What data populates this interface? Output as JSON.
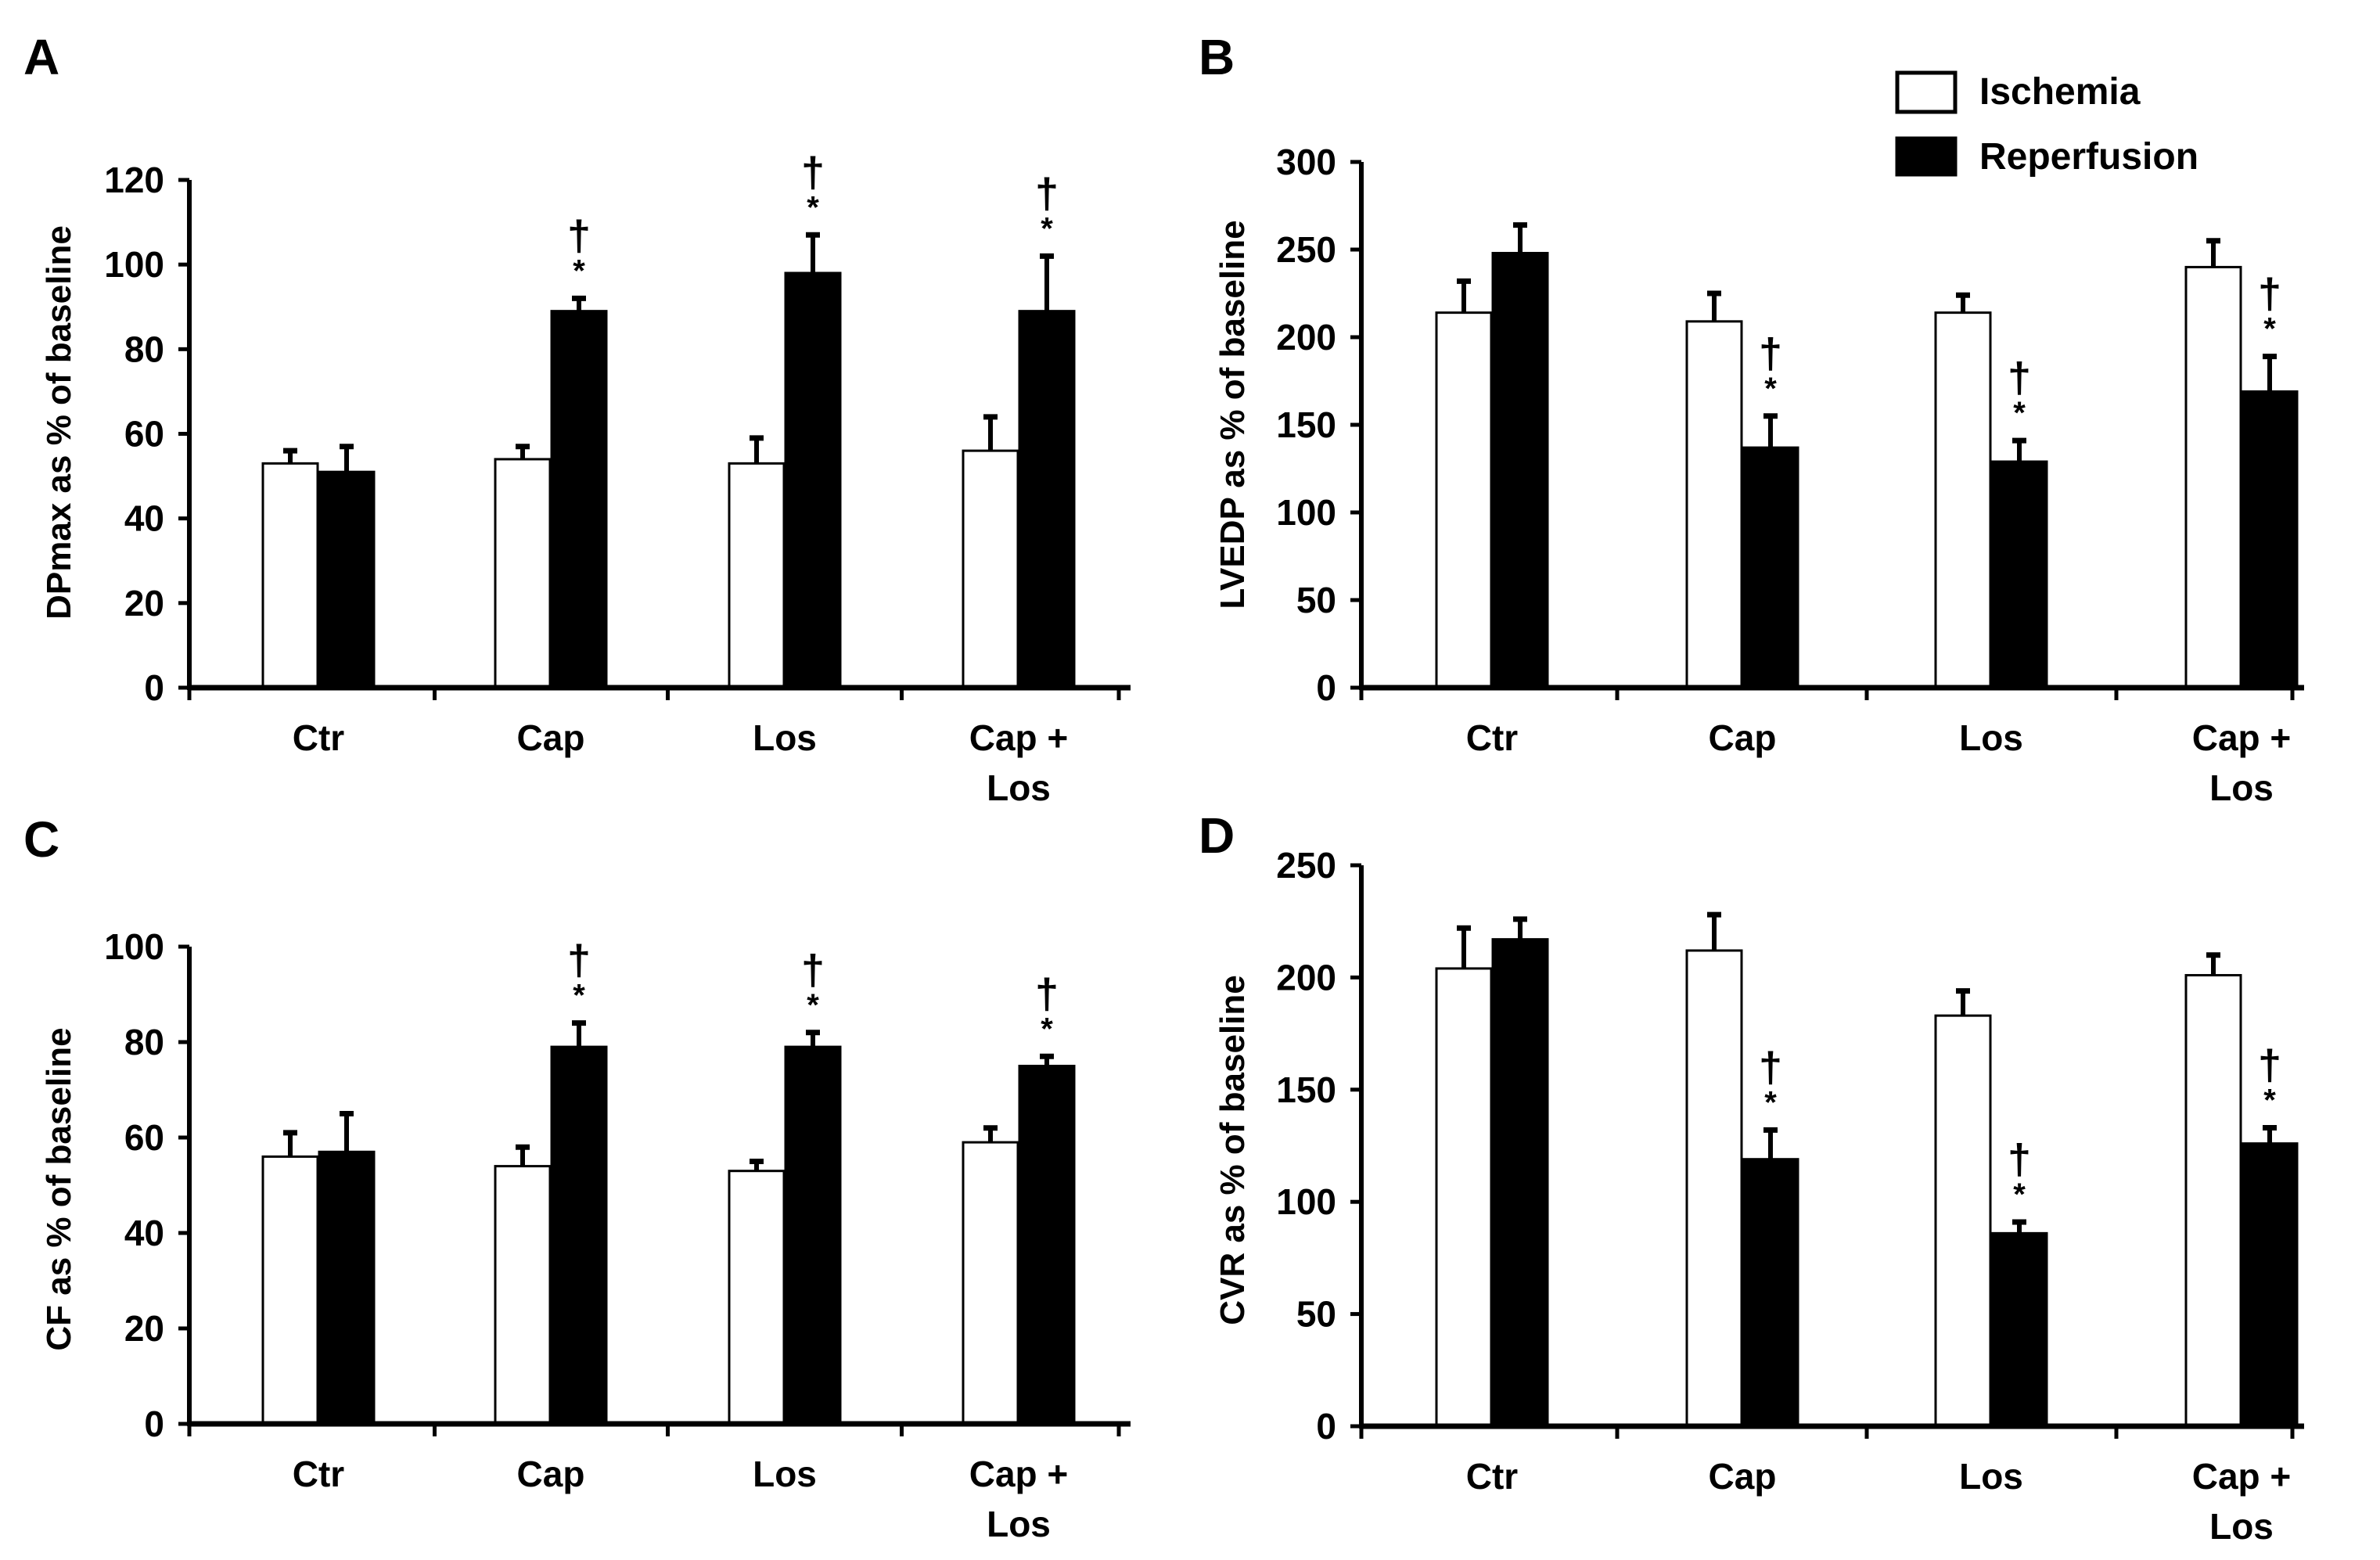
{
  "legend": {
    "entries": [
      {
        "label": "Ischemia",
        "fill": "#ffffff"
      },
      {
        "label": "Reperfusion",
        "fill": "#000000"
      }
    ]
  },
  "colors": {
    "ischemia": "#ffffff",
    "reperfusion": "#000000",
    "stroke": "#000000"
  },
  "chart_data": [
    {
      "panel": "A",
      "type": "bar",
      "ylabel": "DPmax as % of baseline",
      "ylim": [
        0,
        120
      ],
      "yticks": [
        0,
        20,
        40,
        60,
        80,
        100,
        120
      ],
      "categories": [
        "Ctr",
        "Cap",
        "Los",
        "Cap + Los"
      ],
      "series": [
        {
          "name": "Ischemia",
          "values": [
            53,
            54,
            53,
            56
          ],
          "errors": [
            3,
            3,
            6,
            8
          ]
        },
        {
          "name": "Reperfusion",
          "values": [
            51,
            89,
            98,
            89
          ],
          "errors": [
            6,
            3,
            9,
            13
          ]
        }
      ],
      "annotations": [
        {
          "category": 1,
          "series": 1,
          "text": "†*"
        },
        {
          "category": 2,
          "series": 1,
          "text": "†*"
        },
        {
          "category": 3,
          "series": 1,
          "text": "†*"
        }
      ]
    },
    {
      "panel": "B",
      "type": "bar",
      "ylabel": "LVEDP as % of baseline",
      "ylim": [
        0,
        300
      ],
      "yticks": [
        0,
        50,
        100,
        150,
        200,
        250,
        300
      ],
      "categories": [
        "Ctr",
        "Cap",
        "Los",
        "Cap + Los"
      ],
      "series": [
        {
          "name": "Ischemia",
          "values": [
            214,
            209,
            214,
            240
          ],
          "errors": [
            18,
            16,
            10,
            15
          ]
        },
        {
          "name": "Reperfusion",
          "values": [
            248,
            137,
            129,
            169
          ],
          "errors": [
            16,
            18,
            12,
            20
          ]
        }
      ],
      "annotations": [
        {
          "category": 1,
          "series": 1,
          "text": "†*"
        },
        {
          "category": 2,
          "series": 1,
          "text": "†*"
        },
        {
          "category": 3,
          "series": 1,
          "text": "†*"
        }
      ]
    },
    {
      "panel": "C",
      "type": "bar",
      "ylabel": "CF as % of baseline",
      "ylim": [
        0,
        100
      ],
      "yticks": [
        0,
        20,
        40,
        60,
        80,
        100
      ],
      "categories": [
        "Ctr",
        "Cap",
        "Los",
        "Cap + Los"
      ],
      "series": [
        {
          "name": "Ischemia",
          "values": [
            56,
            54,
            53,
            59
          ],
          "errors": [
            5,
            4,
            2,
            3
          ]
        },
        {
          "name": "Reperfusion",
          "values": [
            57,
            79,
            79,
            75
          ],
          "errors": [
            8,
            5,
            3,
            2
          ]
        }
      ],
      "annotations": [
        {
          "category": 1,
          "series": 1,
          "text": "†*"
        },
        {
          "category": 2,
          "series": 1,
          "text": "†*"
        },
        {
          "category": 3,
          "series": 1,
          "text": "†*"
        }
      ]
    },
    {
      "panel": "D",
      "type": "bar",
      "ylabel": "CVR as % of baseline",
      "ylim": [
        0,
        250
      ],
      "yticks": [
        0,
        50,
        100,
        150,
        200,
        250
      ],
      "categories": [
        "Ctr",
        "Cap",
        "Los",
        "Cap + Los"
      ],
      "series": [
        {
          "name": "Ischemia",
          "values": [
            204,
            212,
            183,
            201
          ],
          "errors": [
            18,
            16,
            11,
            9
          ]
        },
        {
          "name": "Reperfusion",
          "values": [
            217,
            119,
            86,
            126
          ],
          "errors": [
            9,
            13,
            5,
            7
          ]
        }
      ],
      "annotations": [
        {
          "category": 1,
          "series": 1,
          "text": "†*"
        },
        {
          "category": 2,
          "series": 1,
          "text": "†*"
        },
        {
          "category": 3,
          "series": 1,
          "text": "†*"
        }
      ]
    }
  ]
}
